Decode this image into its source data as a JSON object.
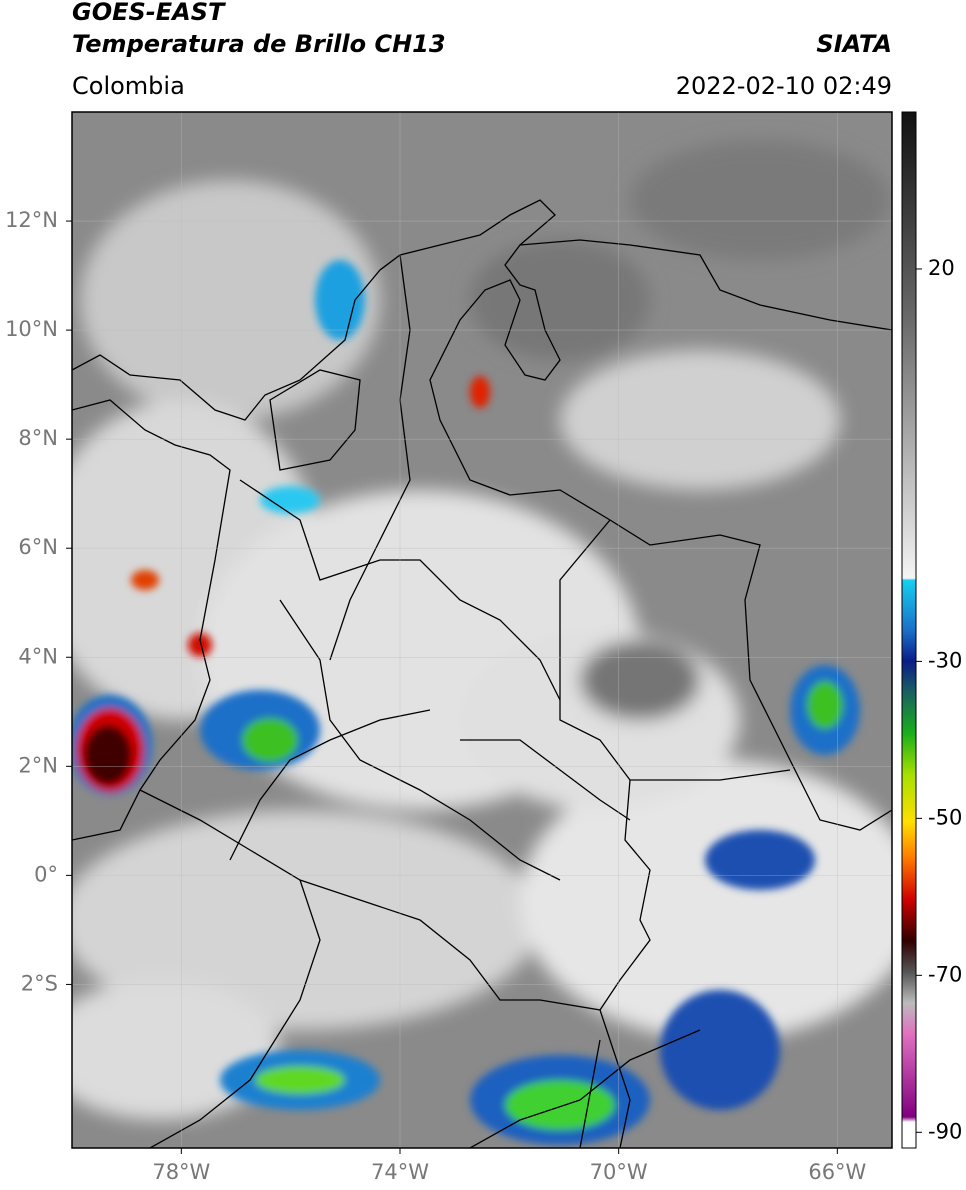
{
  "header": {
    "title": "GOES-EAST",
    "subtitle": "Temperatura de Brillo CH13",
    "source": "SIATA",
    "region": "Colombia",
    "datetime": "2022-02-10 02:49"
  },
  "map": {
    "lonlim": [
      -80,
      -65
    ],
    "latlim": [
      -5,
      14
    ],
    "lonticks": [
      {
        "value": -78,
        "label": "78°W"
      },
      {
        "value": -74,
        "label": "74°W"
      },
      {
        "value": -70,
        "label": "70°W"
      },
      {
        "value": -66,
        "label": "66°W"
      }
    ],
    "latticks": [
      {
        "value": 12,
        "label": "12°N"
      },
      {
        "value": 10,
        "label": "10°N"
      },
      {
        "value": 8,
        "label": "8°N"
      },
      {
        "value": 6,
        "label": "6°N"
      },
      {
        "value": 4,
        "label": "4°N"
      },
      {
        "value": 2,
        "label": "2°N"
      },
      {
        "value": 0,
        "label": "0°"
      },
      {
        "value": -2,
        "label": "2°S"
      }
    ]
  },
  "colorbar": {
    "clim": [
      -92,
      40
    ],
    "ticks": [
      20,
      -30,
      -50,
      -70,
      -90
    ]
  }
}
